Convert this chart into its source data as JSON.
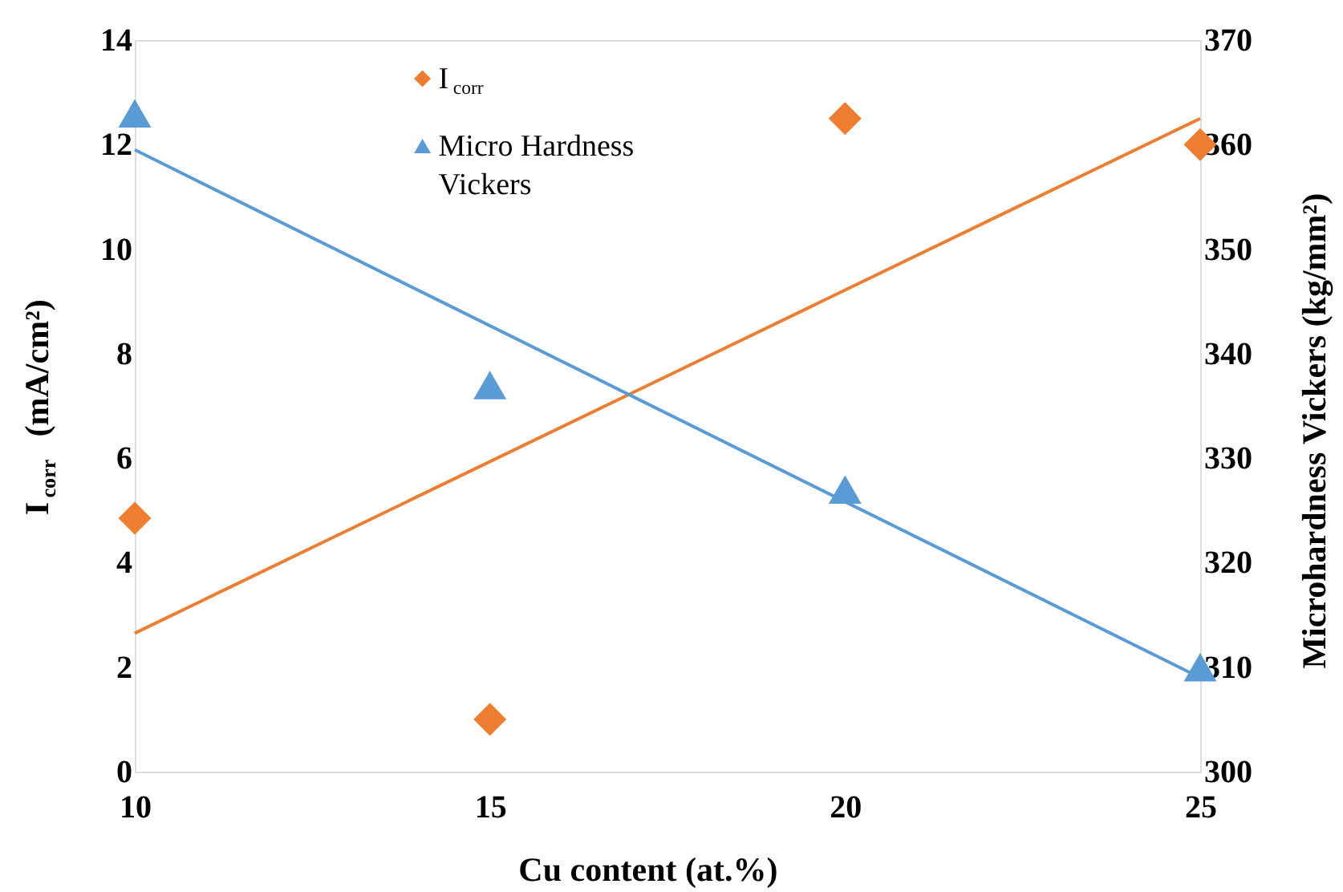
{
  "chart_data": {
    "type": "scatter",
    "xlabel": "Cu content (at.%)",
    "ylabel": "I$_{corr}$ (mA/cm²)",
    "y2label": "Microhardness Vickers (kg/mm²)",
    "xlim": [
      10,
      25
    ],
    "xticks": [
      10,
      15,
      20,
      25
    ],
    "ylim": [
      0,
      14
    ],
    "yticks": [
      0,
      2,
      4,
      6,
      8,
      10,
      12,
      14
    ],
    "y2lim": [
      300,
      370
    ],
    "y2ticks": [
      300,
      310,
      320,
      330,
      340,
      350,
      360,
      370
    ],
    "grid": false,
    "legend": "top",
    "series": [
      {
        "name": "I$_{corr}$",
        "type": "scatter",
        "marker": "diamond",
        "color": "#ed7d31",
        "x": [
          10,
          15,
          20,
          25
        ],
        "values": [
          4.85,
          1.0,
          12.5,
          12.0
        ]
      },
      {
        "name": "Micro Hardness Vickers",
        "type": "scatter",
        "marker": "triangle",
        "color": "#5b9bd5",
        "axis": "y2",
        "x": [
          10,
          15,
          20,
          25
        ],
        "values": [
          363,
          337,
          327,
          310
        ]
      },
      {
        "type": "line",
        "color": "#ed7d31",
        "x": [
          10,
          25
        ],
        "values": [
          2.65,
          12.5
        ]
      },
      {
        "type": "line",
        "color": "#5b9bd5",
        "axis": "y2",
        "x": [
          10,
          25
        ],
        "values": [
          359.5,
          309
        ]
      }
    ]
  }
}
